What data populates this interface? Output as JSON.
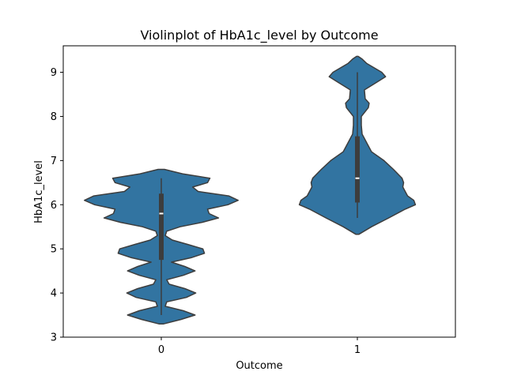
{
  "chart_data": {
    "type": "violin",
    "title": "Violinplot of HbA1c_level by Outcome",
    "xlabel": "Outcome",
    "ylabel": "HbA1c_level",
    "categories": [
      "0",
      "1"
    ],
    "ylim": [
      3.0,
      9.6
    ],
    "yticks": [
      3,
      4,
      5,
      6,
      7,
      8,
      9
    ],
    "grid": false,
    "color": "#3274a1",
    "edge_color": "#3d3d3d",
    "violins": [
      {
        "category": "0",
        "box": {
          "min": 3.5,
          "q1": 4.75,
          "median": 5.8,
          "q3": 6.25,
          "max": 6.6
        },
        "profile": [
          [
            3.3,
            0.03
          ],
          [
            3.4,
            0.25
          ],
          [
            3.5,
            0.43
          ],
          [
            3.6,
            0.28
          ],
          [
            3.7,
            0.05
          ],
          [
            3.8,
            0.07
          ],
          [
            3.9,
            0.32
          ],
          [
            4.0,
            0.44
          ],
          [
            4.1,
            0.3
          ],
          [
            4.2,
            0.1
          ],
          [
            4.3,
            0.07
          ],
          [
            4.4,
            0.28
          ],
          [
            4.5,
            0.43
          ],
          [
            4.6,
            0.3
          ],
          [
            4.7,
            0.13
          ],
          [
            4.8,
            0.38
          ],
          [
            4.9,
            0.55
          ],
          [
            5.0,
            0.53
          ],
          [
            5.1,
            0.34
          ],
          [
            5.2,
            0.14
          ],
          [
            5.3,
            0.05
          ],
          [
            5.4,
            0.07
          ],
          [
            5.5,
            0.24
          ],
          [
            5.6,
            0.52
          ],
          [
            5.7,
            0.73
          ],
          [
            5.8,
            0.61
          ],
          [
            5.9,
            0.59
          ],
          [
            6.0,
            0.85
          ],
          [
            6.1,
            0.98
          ],
          [
            6.2,
            0.86
          ],
          [
            6.3,
            0.47
          ],
          [
            6.4,
            0.4
          ],
          [
            6.5,
            0.59
          ],
          [
            6.6,
            0.62
          ],
          [
            6.7,
            0.27
          ],
          [
            6.8,
            0.04
          ]
        ]
      },
      {
        "category": "1",
        "box": {
          "min": 5.7,
          "q1": 6.05,
          "median": 6.6,
          "q3": 7.55,
          "max": 9.0
        },
        "profile": [
          [
            5.33,
            0.02
          ],
          [
            5.5,
            0.18
          ],
          [
            5.7,
            0.4
          ],
          [
            5.9,
            0.61
          ],
          [
            6.0,
            0.74
          ],
          [
            6.1,
            0.72
          ],
          [
            6.2,
            0.64
          ],
          [
            6.4,
            0.58
          ],
          [
            6.5,
            0.59
          ],
          [
            6.6,
            0.57
          ],
          [
            6.8,
            0.46
          ],
          [
            7.0,
            0.34
          ],
          [
            7.2,
            0.18
          ],
          [
            7.3,
            0.15
          ],
          [
            7.4,
            0.12
          ],
          [
            7.6,
            0.06
          ],
          [
            7.8,
            0.05
          ],
          [
            8.0,
            0.05
          ],
          [
            8.2,
            0.14
          ],
          [
            8.3,
            0.15
          ],
          [
            8.4,
            0.1
          ],
          [
            8.6,
            0.09
          ],
          [
            8.8,
            0.27
          ],
          [
            8.9,
            0.36
          ],
          [
            9.0,
            0.31
          ],
          [
            9.2,
            0.12
          ],
          [
            9.3,
            0.06
          ],
          [
            9.36,
            0.01
          ]
        ]
      }
    ]
  }
}
